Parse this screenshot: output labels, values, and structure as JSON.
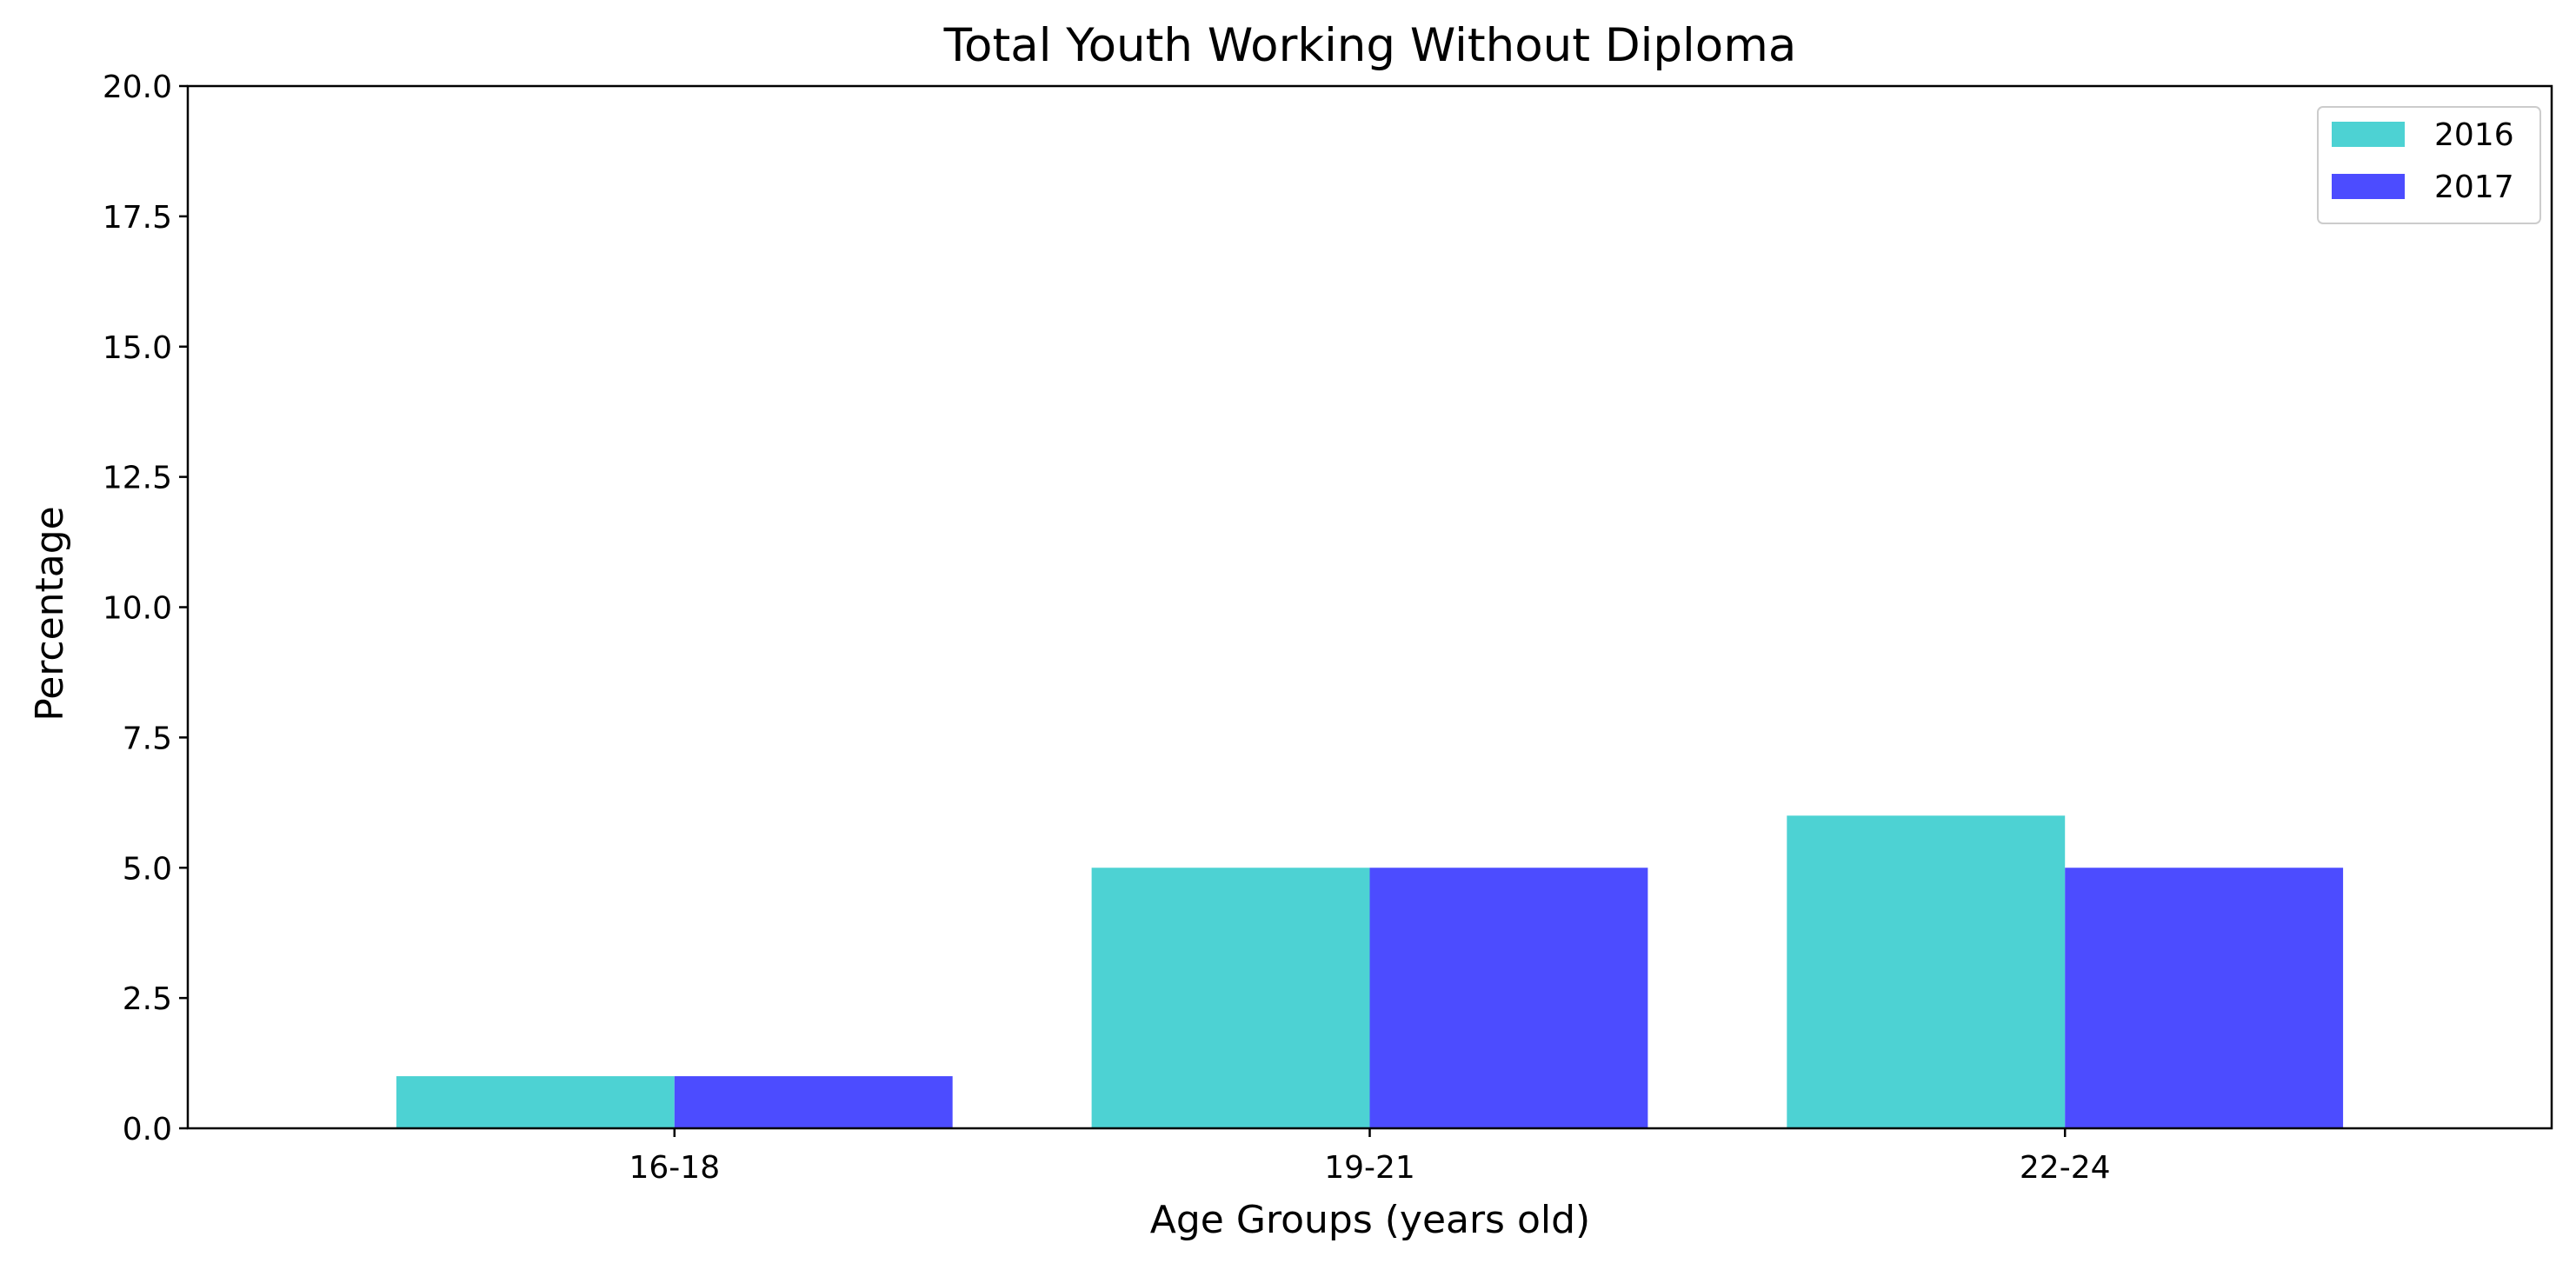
{
  "chart_data": {
    "type": "bar",
    "title": "Total Youth Working Without Diploma",
    "xlabel": "Age Groups (years old)",
    "ylabel": "Percentage",
    "categories": [
      "16-18",
      "19-21",
      "22-24"
    ],
    "series": [
      {
        "name": "2016",
        "values": [
          1,
          5,
          6
        ],
        "color": "#4dd2d3"
      },
      {
        "name": "2017",
        "values": [
          1,
          5,
          5
        ],
        "color": "#4c4cff"
      }
    ],
    "ylim": [
      0,
      20
    ],
    "yticks": [
      "0.0",
      "2.5",
      "5.0",
      "7.5",
      "10.0",
      "12.5",
      "15.0",
      "17.5",
      "20.0"
    ],
    "grid": false,
    "legend_position": "top-right"
  }
}
